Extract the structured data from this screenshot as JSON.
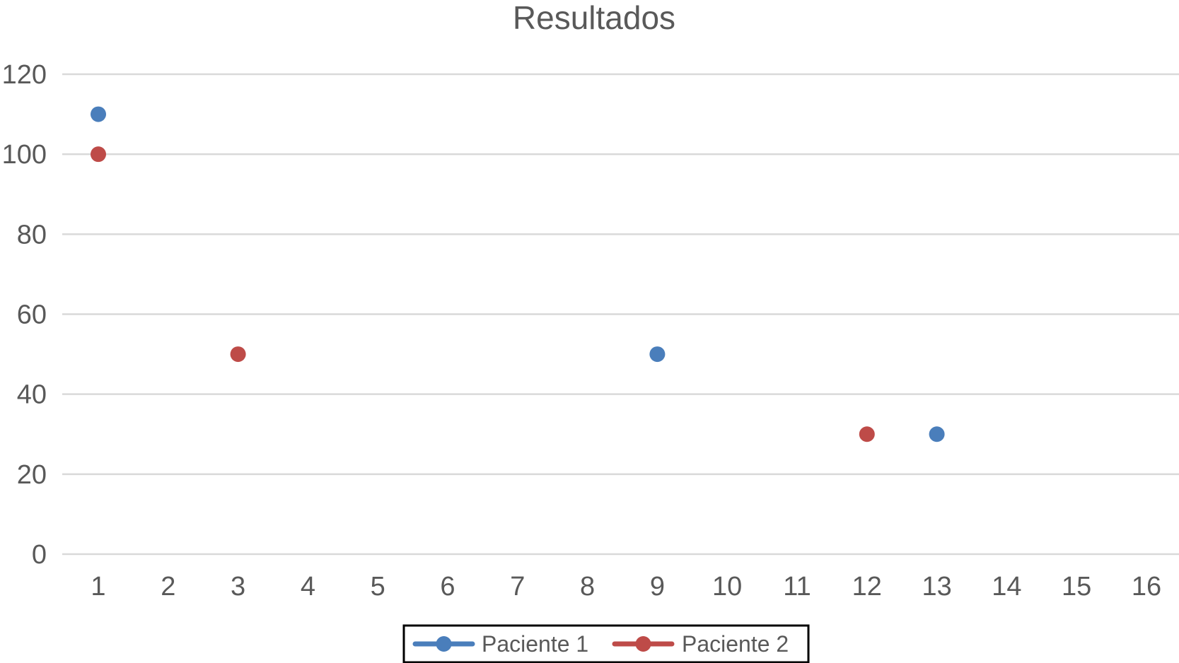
{
  "chart_data": {
    "type": "scatter",
    "title": "Resultados",
    "xlabel": "",
    "ylabel": "",
    "x_ticks": [
      "1",
      "2",
      "3",
      "4",
      "5",
      "6",
      "7",
      "8",
      "9",
      "10",
      "11",
      "12",
      "13",
      "14",
      "15",
      "16"
    ],
    "y_ticks": [
      0,
      20,
      40,
      60,
      80,
      100,
      120
    ],
    "ylim": [
      0,
      120
    ],
    "xlim": [
      1,
      16
    ],
    "grid": "horizontal",
    "legend": "bottom",
    "series": [
      {
        "name": "Paciente 1",
        "color": "#4a7ebb",
        "points": [
          [
            1,
            110
          ],
          [
            9,
            50
          ],
          [
            13,
            30
          ]
        ]
      },
      {
        "name": "Paciente 2",
        "color": "#be4b48",
        "points": [
          [
            1,
            100
          ],
          [
            3,
            50
          ],
          [
            12,
            30
          ]
        ]
      }
    ]
  }
}
